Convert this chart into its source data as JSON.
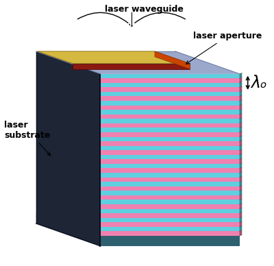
{
  "background_color": "#ffffff",
  "left_face_color": "#1e2535",
  "top_face_color": "#9ba8cc",
  "bottom_stripe_color": "#2e6070",
  "stripe_cyan": "#5ecfdf",
  "stripe_pink": "#f080b0",
  "stripe_cyan_edge": "#3aabb8",
  "stripe_pink_edge": "#c060a0",
  "n_stripe_pairs": 18,
  "waveguide_top_color": "#d4b840",
  "waveguide_front_color": "#8b1a10",
  "waveguide_right_color": "#cc4400",
  "label_laser_waveguide": "laser waveguide",
  "label_laser_aperture": "laser aperture",
  "label_laser_substrate": "laser\nsubstrate",
  "label_lambda": "λₒ",
  "label_fontsize": 9,
  "label_lambda_fontsize": 17
}
